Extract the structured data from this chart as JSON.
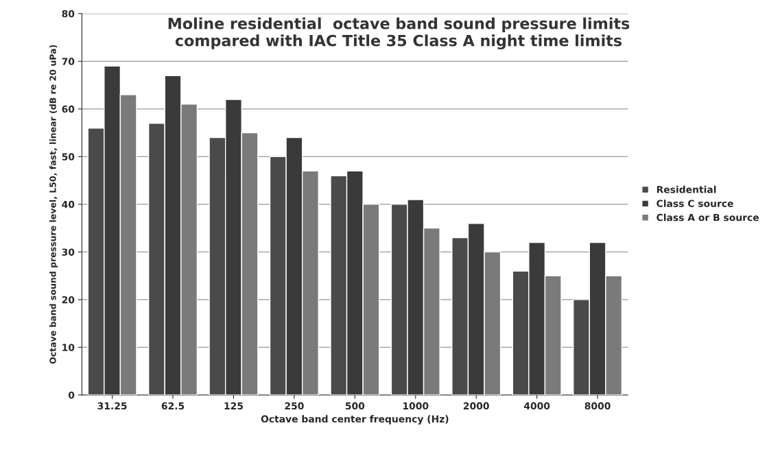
{
  "chart_data": {
    "type": "bar",
    "title": "Moline residential  octave band sound pressure limits\ncompared with IAC Title 35 Class A night time limits",
    "xlabel": "Octave band center frequency (Hz)",
    "ylabel": "Octave band sound pressure level, L50, fast, linear (dB re 20 uPa)",
    "categories": [
      "31.25",
      "62.5",
      "125",
      "250",
      "500",
      "1000",
      "2000",
      "4000",
      "8000"
    ],
    "series": [
      {
        "name": "Residential",
        "color": "#4a4a4a",
        "values": [
          56,
          57,
          54,
          50,
          46,
          40,
          33,
          26,
          20
        ]
      },
      {
        "name": "Class C source",
        "color": "#3a3a3a",
        "values": [
          69,
          67,
          62,
          54,
          47,
          41,
          36,
          32,
          32
        ]
      },
      {
        "name": "Class A or B source",
        "color": "#7a7a7a",
        "values": [
          63,
          61,
          55,
          47,
          40,
          35,
          30,
          25,
          25
        ]
      }
    ],
    "ylim": [
      0,
      80
    ],
    "yticks": [
      0,
      10,
      20,
      30,
      40,
      50,
      60,
      70,
      80
    ],
    "grid": "y",
    "legend": "right"
  }
}
